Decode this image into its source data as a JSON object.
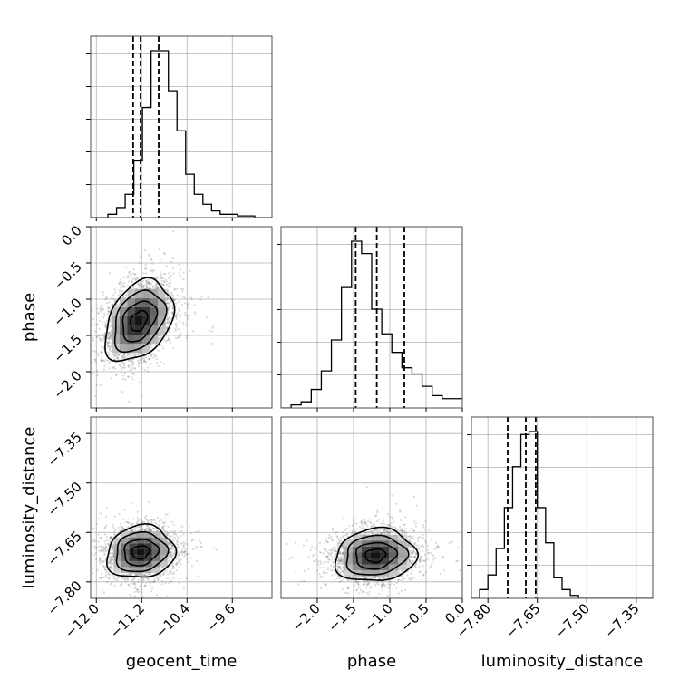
{
  "chart_data": {
    "type": "corner",
    "parameters": [
      "geocent_time",
      "phase",
      "luminosity_distance"
    ],
    "grid": true,
    "ranges": {
      "geocent_time": [
        -12.1,
        -8.9
      ],
      "phase": [
        -2.5,
        0.0
      ],
      "luminosity_distance": [
        -7.85,
        -7.3
      ]
    },
    "ticks": {
      "geocent_time": [
        -12.0,
        -11.2,
        -10.4,
        -9.6
      ],
      "phase": [
        -2.0,
        -1.5,
        -1.0,
        -0.5,
        0.0
      ],
      "luminosity_distance": [
        -7.8,
        -7.65,
        -7.5,
        -7.35
      ]
    },
    "tick_labels": {
      "geocent_time": [
        "−12.0",
        "−11.2",
        "−10.4",
        "−9.6"
      ],
      "phase": [
        "−2.0",
        "−1.5",
        "−1.0",
        "−0.5",
        "0.0"
      ],
      "luminosity_distance": [
        "−7.80",
        "−7.65",
        "−7.50",
        "−7.35"
      ]
    },
    "quantiles": {
      "geocent_time": [
        -11.35,
        -11.22,
        -10.9
      ],
      "phase": [
        -1.47,
        -1.18,
        -0.8
      ],
      "luminosity_distance": [
        -7.74,
        -7.685,
        -7.655
      ]
    },
    "histograms": {
      "geocent_time": {
        "range": [
          -12.1,
          -8.9
        ],
        "counts": [
          0,
          0,
          1,
          3,
          7,
          17,
          33,
          50,
          50,
          38,
          26,
          13,
          7,
          4,
          2,
          1,
          1,
          0.5,
          0.5,
          0,
          0
        ]
      },
      "phase": {
        "range": [
          -2.5,
          0.0
        ],
        "counts": [
          0,
          1,
          2,
          6,
          12,
          22,
          39,
          54,
          50,
          32,
          24,
          18,
          13,
          11,
          7,
          4,
          3,
          3
        ]
      },
      "luminosity_distance": {
        "range": [
          -7.85,
          -7.3
        ],
        "counts": [
          0,
          3,
          8,
          17,
          31,
          45,
          56,
          57,
          31,
          19,
          7,
          3,
          1,
          0,
          0,
          0,
          0,
          0,
          0,
          0,
          0,
          0
        ]
      }
    },
    "correlations": {
      "phase_vs_geocent_time": {
        "center": [
          -11.25,
          -1.3
        ],
        "sigma": [
          0.3,
          0.28
        ],
        "rho": 0.35,
        "contour_levels": [
          0.5,
          1.0,
          1.5,
          2.0
        ]
      },
      "luminosity_distance_vs_geocent_time": {
        "center": [
          -11.22,
          -7.71
        ],
        "sigma": [
          0.3,
          0.04
        ],
        "rho": 0.1,
        "contour_levels": [
          0.5,
          1.0,
          1.5,
          2.0
        ]
      },
      "luminosity_distance_vs_phase": {
        "center": [
          -1.2,
          -7.72
        ],
        "sigma": [
          0.28,
          0.04
        ],
        "rho": 0.1,
        "contour_levels": [
          0.5,
          1.0,
          1.5,
          2.0
        ]
      }
    }
  }
}
